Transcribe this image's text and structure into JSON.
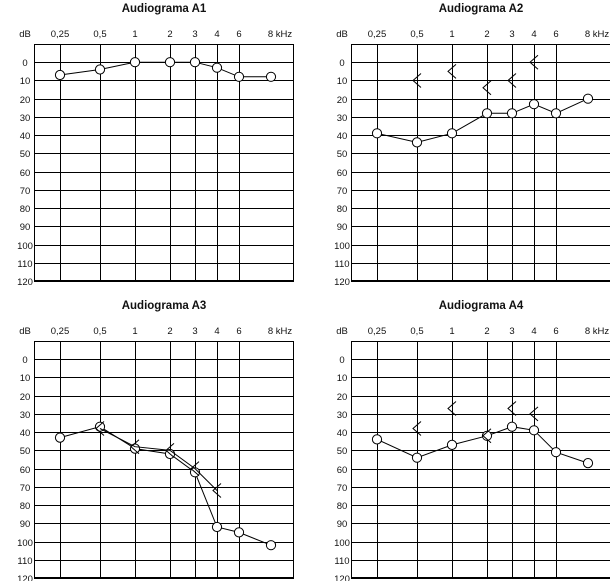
{
  "chart_data": [
    {
      "type": "line",
      "title": "Audiograma A1",
      "ylabel": "dB",
      "xlabel": "8 kHz",
      "x_tick_labels": [
        "0,25",
        "0,5",
        "1",
        "2",
        "3",
        "4",
        "6",
        "8 kHz"
      ],
      "y_tick_labels": [
        "0",
        "10",
        "20",
        "30",
        "40",
        "50",
        "60",
        "70",
        "80",
        "90",
        "100",
        "110",
        "120"
      ],
      "x_scale": "log",
      "ylim": [
        -10,
        120
      ],
      "y_inverted": true,
      "series": [
        {
          "marker": "circle",
          "x": [
            0.25,
            0.5,
            1,
            2,
            3,
            4,
            6,
            8
          ],
          "y": [
            7,
            4,
            0,
            0,
            0,
            3,
            8,
            8
          ]
        }
      ]
    },
    {
      "type": "line",
      "title": "Audiograma A2",
      "ylabel": "dB",
      "xlabel": "8 kHz",
      "x_tick_labels": [
        "0,25",
        "0,5",
        "1",
        "2",
        "3",
        "4",
        "6",
        "8 kHz"
      ],
      "y_tick_labels": [
        "0",
        "10",
        "20",
        "30",
        "40",
        "50",
        "60",
        "70",
        "80",
        "90",
        "100",
        "110",
        "120"
      ],
      "x_scale": "log",
      "ylim": [
        -10,
        120
      ],
      "y_inverted": true,
      "series": [
        {
          "marker": "circle",
          "x": [
            0.25,
            0.5,
            1,
            2,
            3,
            4,
            6,
            8
          ],
          "y": [
            39,
            44,
            39,
            28,
            28,
            23,
            28,
            20
          ]
        },
        {
          "marker": "bracket",
          "x": [
            0.5,
            1,
            2,
            3,
            4
          ],
          "y": [
            10,
            5,
            14,
            10,
            0
          ]
        }
      ]
    },
    {
      "type": "line",
      "title": "Audiograma A3",
      "ylabel": "dB",
      "xlabel": "8 kHz",
      "x_tick_labels": [
        "0,25",
        "0,5",
        "1",
        "2",
        "3",
        "4",
        "6",
        "8 kHz"
      ],
      "y_tick_labels": [
        "0",
        "10",
        "20",
        "30",
        "40",
        "50",
        "60",
        "70",
        "80",
        "90",
        "100",
        "110",
        "120"
      ],
      "x_scale": "log",
      "ylim": [
        -10,
        120
      ],
      "y_inverted": true,
      "series": [
        {
          "marker": "circle",
          "x": [
            0.25,
            0.5,
            1,
            2,
            3,
            4,
            6,
            8
          ],
          "y": [
            43,
            37,
            49,
            52,
            62,
            92,
            95,
            102
          ]
        },
        {
          "marker": "bracket",
          "x": [
            0.5,
            1,
            2,
            3,
            4
          ],
          "y": [
            38,
            48,
            50,
            60,
            72
          ],
          "connected": true
        }
      ]
    },
    {
      "type": "line",
      "title": "Audiograma A4",
      "ylabel": "dB",
      "xlabel": "8 kHz",
      "x_tick_labels": [
        "0,25",
        "0,5",
        "1",
        "2",
        "3",
        "4",
        "6",
        "8 kHz"
      ],
      "y_tick_labels": [
        "0",
        "10",
        "20",
        "30",
        "40",
        "50",
        "60",
        "70",
        "80",
        "90",
        "100",
        "110",
        "120"
      ],
      "x_scale": "log",
      "ylim": [
        -10,
        120
      ],
      "y_inverted": true,
      "series": [
        {
          "marker": "circle",
          "x": [
            0.25,
            0.5,
            1,
            2,
            3,
            4,
            6,
            8
          ],
          "y": [
            44,
            54,
            47,
            42,
            37,
            39,
            51,
            57
          ]
        },
        {
          "marker": "bracket",
          "x": [
            0.5,
            1,
            2,
            3,
            4
          ],
          "y": [
            38,
            27,
            42,
            27,
            30
          ]
        }
      ]
    }
  ]
}
